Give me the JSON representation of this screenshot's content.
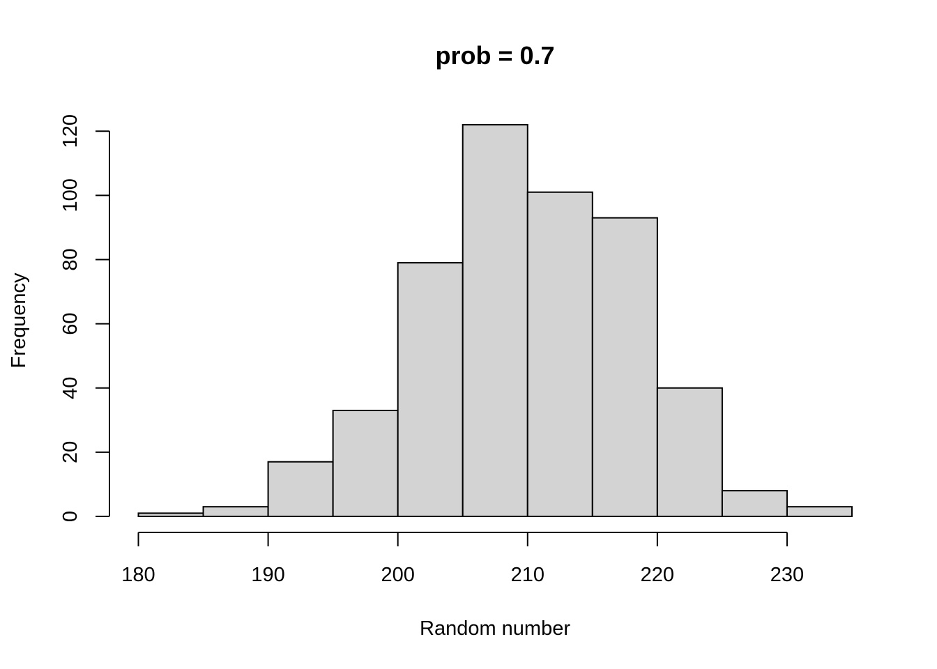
{
  "chart_data": {
    "type": "bar",
    "title": "prob = 0.7",
    "xlabel": "Random number",
    "ylabel": "Frequency",
    "bins": [
      {
        "from": 180,
        "to": 185,
        "count": 1
      },
      {
        "from": 185,
        "to": 190,
        "count": 3
      },
      {
        "from": 190,
        "to": 195,
        "count": 17
      },
      {
        "from": 195,
        "to": 200,
        "count": 33
      },
      {
        "from": 200,
        "to": 205,
        "count": 79
      },
      {
        "from": 205,
        "to": 210,
        "count": 122
      },
      {
        "from": 210,
        "to": 215,
        "count": 101
      },
      {
        "from": 215,
        "to": 220,
        "count": 93
      },
      {
        "from": 220,
        "to": 225,
        "count": 40
      },
      {
        "from": 225,
        "to": 230,
        "count": 8
      },
      {
        "from": 230,
        "to": 235,
        "count": 3
      }
    ],
    "xticks": [
      180,
      190,
      200,
      210,
      220,
      230
    ],
    "yticks": [
      0,
      20,
      40,
      60,
      80,
      100,
      120
    ],
    "xlim": [
      180,
      235
    ],
    "ylim": [
      0,
      122
    ],
    "bar_color": "#d3d3d3",
    "edge_color": "#000000",
    "grid": false,
    "legend": "none"
  }
}
